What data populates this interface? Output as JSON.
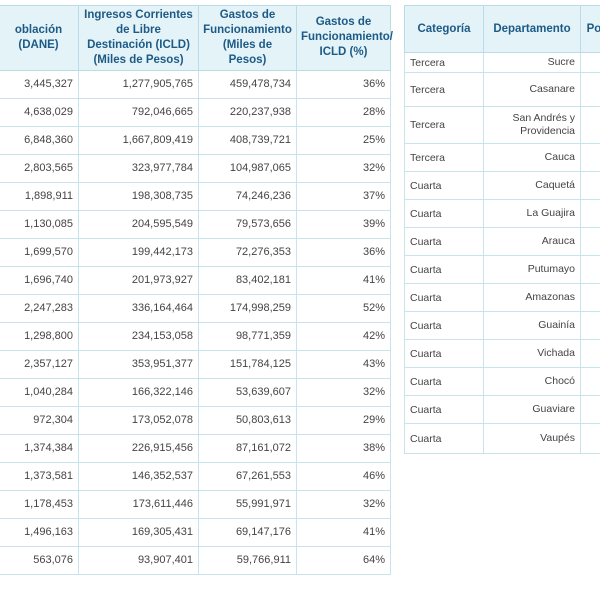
{
  "left_table": {
    "headers": [
      "oblación (DANE)",
      "Ingresos Corrientes de Libre Destinación (ICLD) (Miles de Pesos)",
      "Gastos de Funcionamiento (Miles de Pesos)",
      "Gastos de Funcionamiento/ ICLD (%)"
    ],
    "rows": [
      [
        "3,445,327",
        "1,277,905,765",
        "459,478,734",
        "36%"
      ],
      [
        "4,638,029",
        "792,046,665",
        "220,237,938",
        "28%"
      ],
      [
        "6,848,360",
        "1,667,809,419",
        "408,739,721",
        "25%"
      ],
      [
        "2,803,565",
        "323,977,784",
        "104,987,065",
        "32%"
      ],
      [
        "1,898,911",
        "198,308,735",
        "74,246,236",
        "37%"
      ],
      [
        "1,130,085",
        "204,595,549",
        "79,573,656",
        "39%"
      ],
      [
        "1,699,570",
        "199,442,173",
        "72,276,353",
        "36%"
      ],
      [
        "1,696,740",
        "201,973,927",
        "83,402,181",
        "41%"
      ],
      [
        "2,247,283",
        "336,164,464",
        "174,998,259",
        "52%"
      ],
      [
        "1,298,800",
        "234,153,058",
        "98,771,359",
        "42%"
      ],
      [
        "2,357,127",
        "353,951,377",
        "151,784,125",
        "43%"
      ],
      [
        "1,040,284",
        "166,322,146",
        "53,639,607",
        "32%"
      ],
      [
        "972,304",
        "173,052,078",
        "50,803,613",
        "29%"
      ],
      [
        "1,374,384",
        "226,915,456",
        "87,161,072",
        "38%"
      ],
      [
        "1,373,581",
        "146,352,537",
        "67,261,553",
        "46%"
      ],
      [
        "1,178,453",
        "173,611,446",
        "55,991,971",
        "32%"
      ],
      [
        "1,496,163",
        "169,305,431",
        "69,147,176",
        "41%"
      ],
      [
        "563,076",
        "93,907,401",
        "59,766,911",
        "64%"
      ]
    ]
  },
  "right_table": {
    "headers": [
      "Categoría",
      "Departamento",
      "Pob"
    ],
    "rows": [
      [
        "Tercera",
        "Sucre"
      ],
      [
        "Tercera",
        "Casanare"
      ],
      [
        "Tercera",
        "San Andrés y Providencia"
      ],
      [
        "Tercera",
        "Cauca"
      ],
      [
        "Cuarta",
        "Caquetá"
      ],
      [
        "Cuarta",
        "La Guajira"
      ],
      [
        "Cuarta",
        "Arauca"
      ],
      [
        "Cuarta",
        "Putumayo"
      ],
      [
        "Cuarta",
        "Amazonas"
      ],
      [
        "Cuarta",
        "Guainía"
      ],
      [
        "Cuarta",
        "Vichada"
      ],
      [
        "Cuarta",
        "Chocó"
      ],
      [
        "Cuarta",
        "Guaviare"
      ],
      [
        "Cuarta",
        "Vaupés"
      ]
    ]
  }
}
